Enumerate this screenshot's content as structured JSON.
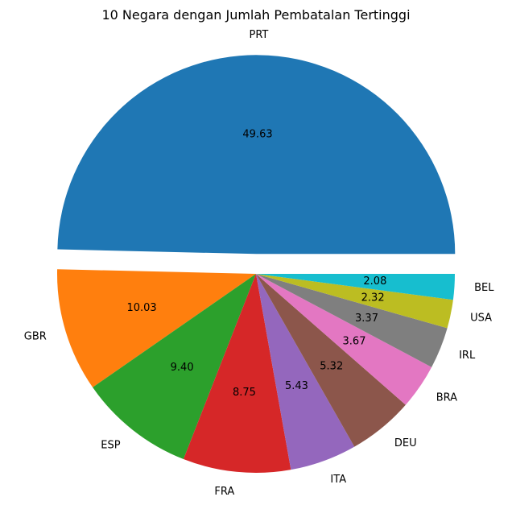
{
  "chart_data": {
    "type": "pie",
    "title": "10 Negara dengan Jumlah Pembatalan Tertinggi",
    "categories": [
      "PRT",
      "GBR",
      "ESP",
      "FRA",
      "ITA",
      "DEU",
      "BRA",
      "IRL",
      "USA",
      "BEL"
    ],
    "values": [
      49.63,
      10.03,
      9.4,
      8.75,
      5.43,
      5.32,
      3.67,
      3.37,
      2.32,
      2.08
    ],
    "value_labels": [
      "49.63",
      "10.03",
      "9.40",
      "8.75",
      "5.43",
      "5.32",
      "3.67",
      "3.37",
      "2.32",
      "2.08"
    ],
    "colors": [
      "#1f77b4",
      "#ff7f0e",
      "#2ca02c",
      "#d62728",
      "#9467bd",
      "#8c564b",
      "#e377c2",
      "#7f7f7f",
      "#bcbd22",
      "#17becf"
    ],
    "explode": [
      0.1,
      0,
      0,
      0,
      0,
      0,
      0,
      0,
      0,
      0
    ],
    "startangle": 0,
    "direction": "counterclockwise"
  }
}
